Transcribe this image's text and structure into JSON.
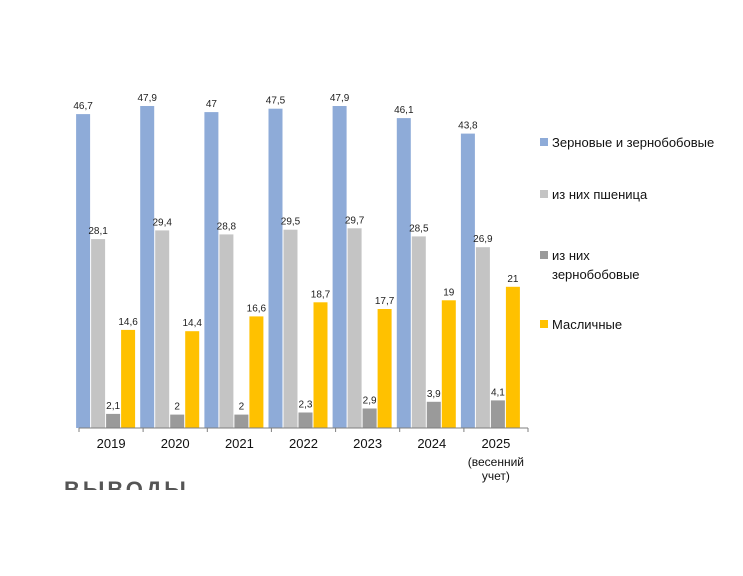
{
  "chart_data": {
    "type": "bar",
    "categories": [
      "2019",
      "2020",
      "2021",
      "2022",
      "2023",
      "2024",
      "2025"
    ],
    "category_sublabels": [
      "",
      "",
      "",
      "",
      "",
      "",
      "(весенний учет)"
    ],
    "series": [
      {
        "name": "Зерновые и зернобобовые",
        "color": "#8eabd8",
        "values": [
          46.7,
          47.9,
          47,
          47.5,
          47.9,
          46.1,
          43.8
        ],
        "labels": [
          "46,7",
          "47,9",
          "47",
          "47,5",
          "47,9",
          "46,1",
          "43,8"
        ]
      },
      {
        "name": "из них пшеница",
        "color": "#c4c4c4",
        "values": [
          28.1,
          29.4,
          28.8,
          29.5,
          29.7,
          28.5,
          26.9
        ],
        "labels": [
          "28,1",
          "29,4",
          "28,8",
          "29,5",
          "29,7",
          "28,5",
          "26,9"
        ]
      },
      {
        "name": "из них зернобобовые",
        "color": "#9a9a9a",
        "values": [
          2.1,
          2,
          2,
          2.3,
          2.9,
          3.9,
          4.1
        ],
        "labels": [
          "2,1",
          "2",
          "2",
          "2,3",
          "2,9",
          "3,9",
          "4,1"
        ]
      },
      {
        "name": "Масличные",
        "color": "#ffc100",
        "values": [
          14.6,
          14.4,
          16.6,
          18.7,
          17.7,
          19,
          21
        ],
        "labels": [
          "14,6",
          "14,4",
          "16,6",
          "18,7",
          "17,7",
          "19",
          "21"
        ]
      }
    ],
    "ylim": [
      0,
      47.9
    ],
    "grid": false,
    "legend_position": "right"
  },
  "watermark_text": "ВЫВОДЫ"
}
